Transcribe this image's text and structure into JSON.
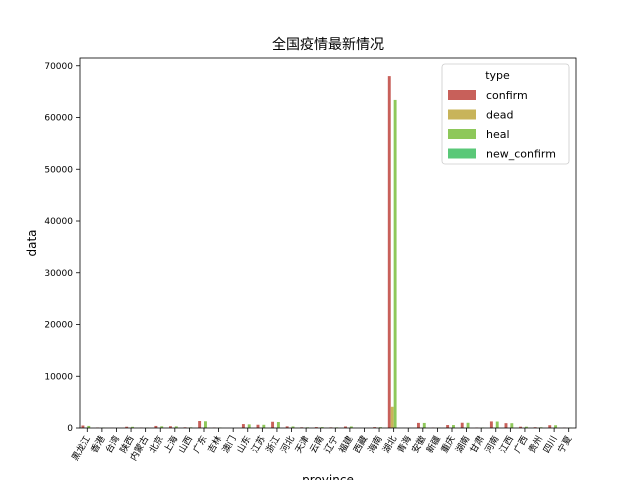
{
  "chart_data": {
    "type": "bar",
    "title": "全国疫情最新情况",
    "xlabel": "province",
    "ylabel": "data",
    "ylim": [
      0,
      71500
    ],
    "yticks": [
      0,
      10000,
      20000,
      30000,
      40000,
      50000,
      60000,
      70000
    ],
    "grid": false,
    "legend": {
      "title": "type",
      "placement": "top-right"
    },
    "categories": [
      "黑龙江",
      "香港",
      "台湾",
      "陕西",
      "内蒙古",
      "北京",
      "上海",
      "山西",
      "广东",
      "吉林",
      "澳门",
      "山东",
      "江苏",
      "浙江",
      "河北",
      "天津",
      "云南",
      "辽宁",
      "福建",
      "西藏",
      "海南",
      "湖北",
      "青海",
      "安徽",
      "新疆",
      "重庆",
      "湖南",
      "甘肃",
      "河南",
      "江西",
      "广西",
      "贵州",
      "四川",
      "宁夏"
    ],
    "series": [
      {
        "name": "confirm",
        "color": "#c8605a",
        "values": [
          480,
          95,
          30,
          245,
          75,
          400,
          340,
          133,
          1350,
          93,
          10,
          760,
          630,
          1205,
          318,
          136,
          174,
          125,
          296,
          1,
          168,
          68000,
          18,
          990,
          76,
          576,
          1018,
          91,
          1272,
          935,
          253,
          146,
          539,
          75
        ]
      },
      {
        "name": "dead",
        "color": "#c8b45a",
        "values": [
          13,
          2,
          1,
          3,
          1,
          4,
          3,
          0,
          7,
          1,
          0,
          6,
          0,
          1,
          6,
          3,
          2,
          1,
          1,
          0,
          4,
          4100,
          0,
          6,
          3,
          6,
          4,
          2,
          22,
          1,
          2,
          2,
          3,
          0
        ]
      },
      {
        "name": "heal",
        "color": "#8ec85a",
        "values": [
          400,
          60,
          15,
          230,
          60,
          320,
          310,
          130,
          1300,
          90,
          10,
          700,
          620,
          1160,
          300,
          130,
          170,
          120,
          290,
          1,
          160,
          63400,
          18,
          980,
          73,
          570,
          1010,
          89,
          1250,
          930,
          250,
          140,
          530,
          75
        ]
      },
      {
        "name": "new_confirm",
        "color": "#5ac878",
        "values": [
          0,
          0,
          0,
          0,
          0,
          0,
          0,
          0,
          0,
          0,
          0,
          0,
          0,
          0,
          0,
          0,
          0,
          0,
          0,
          0,
          0,
          0,
          0,
          0,
          0,
          0,
          0,
          0,
          0,
          0,
          0,
          0,
          0,
          0
        ]
      }
    ]
  }
}
